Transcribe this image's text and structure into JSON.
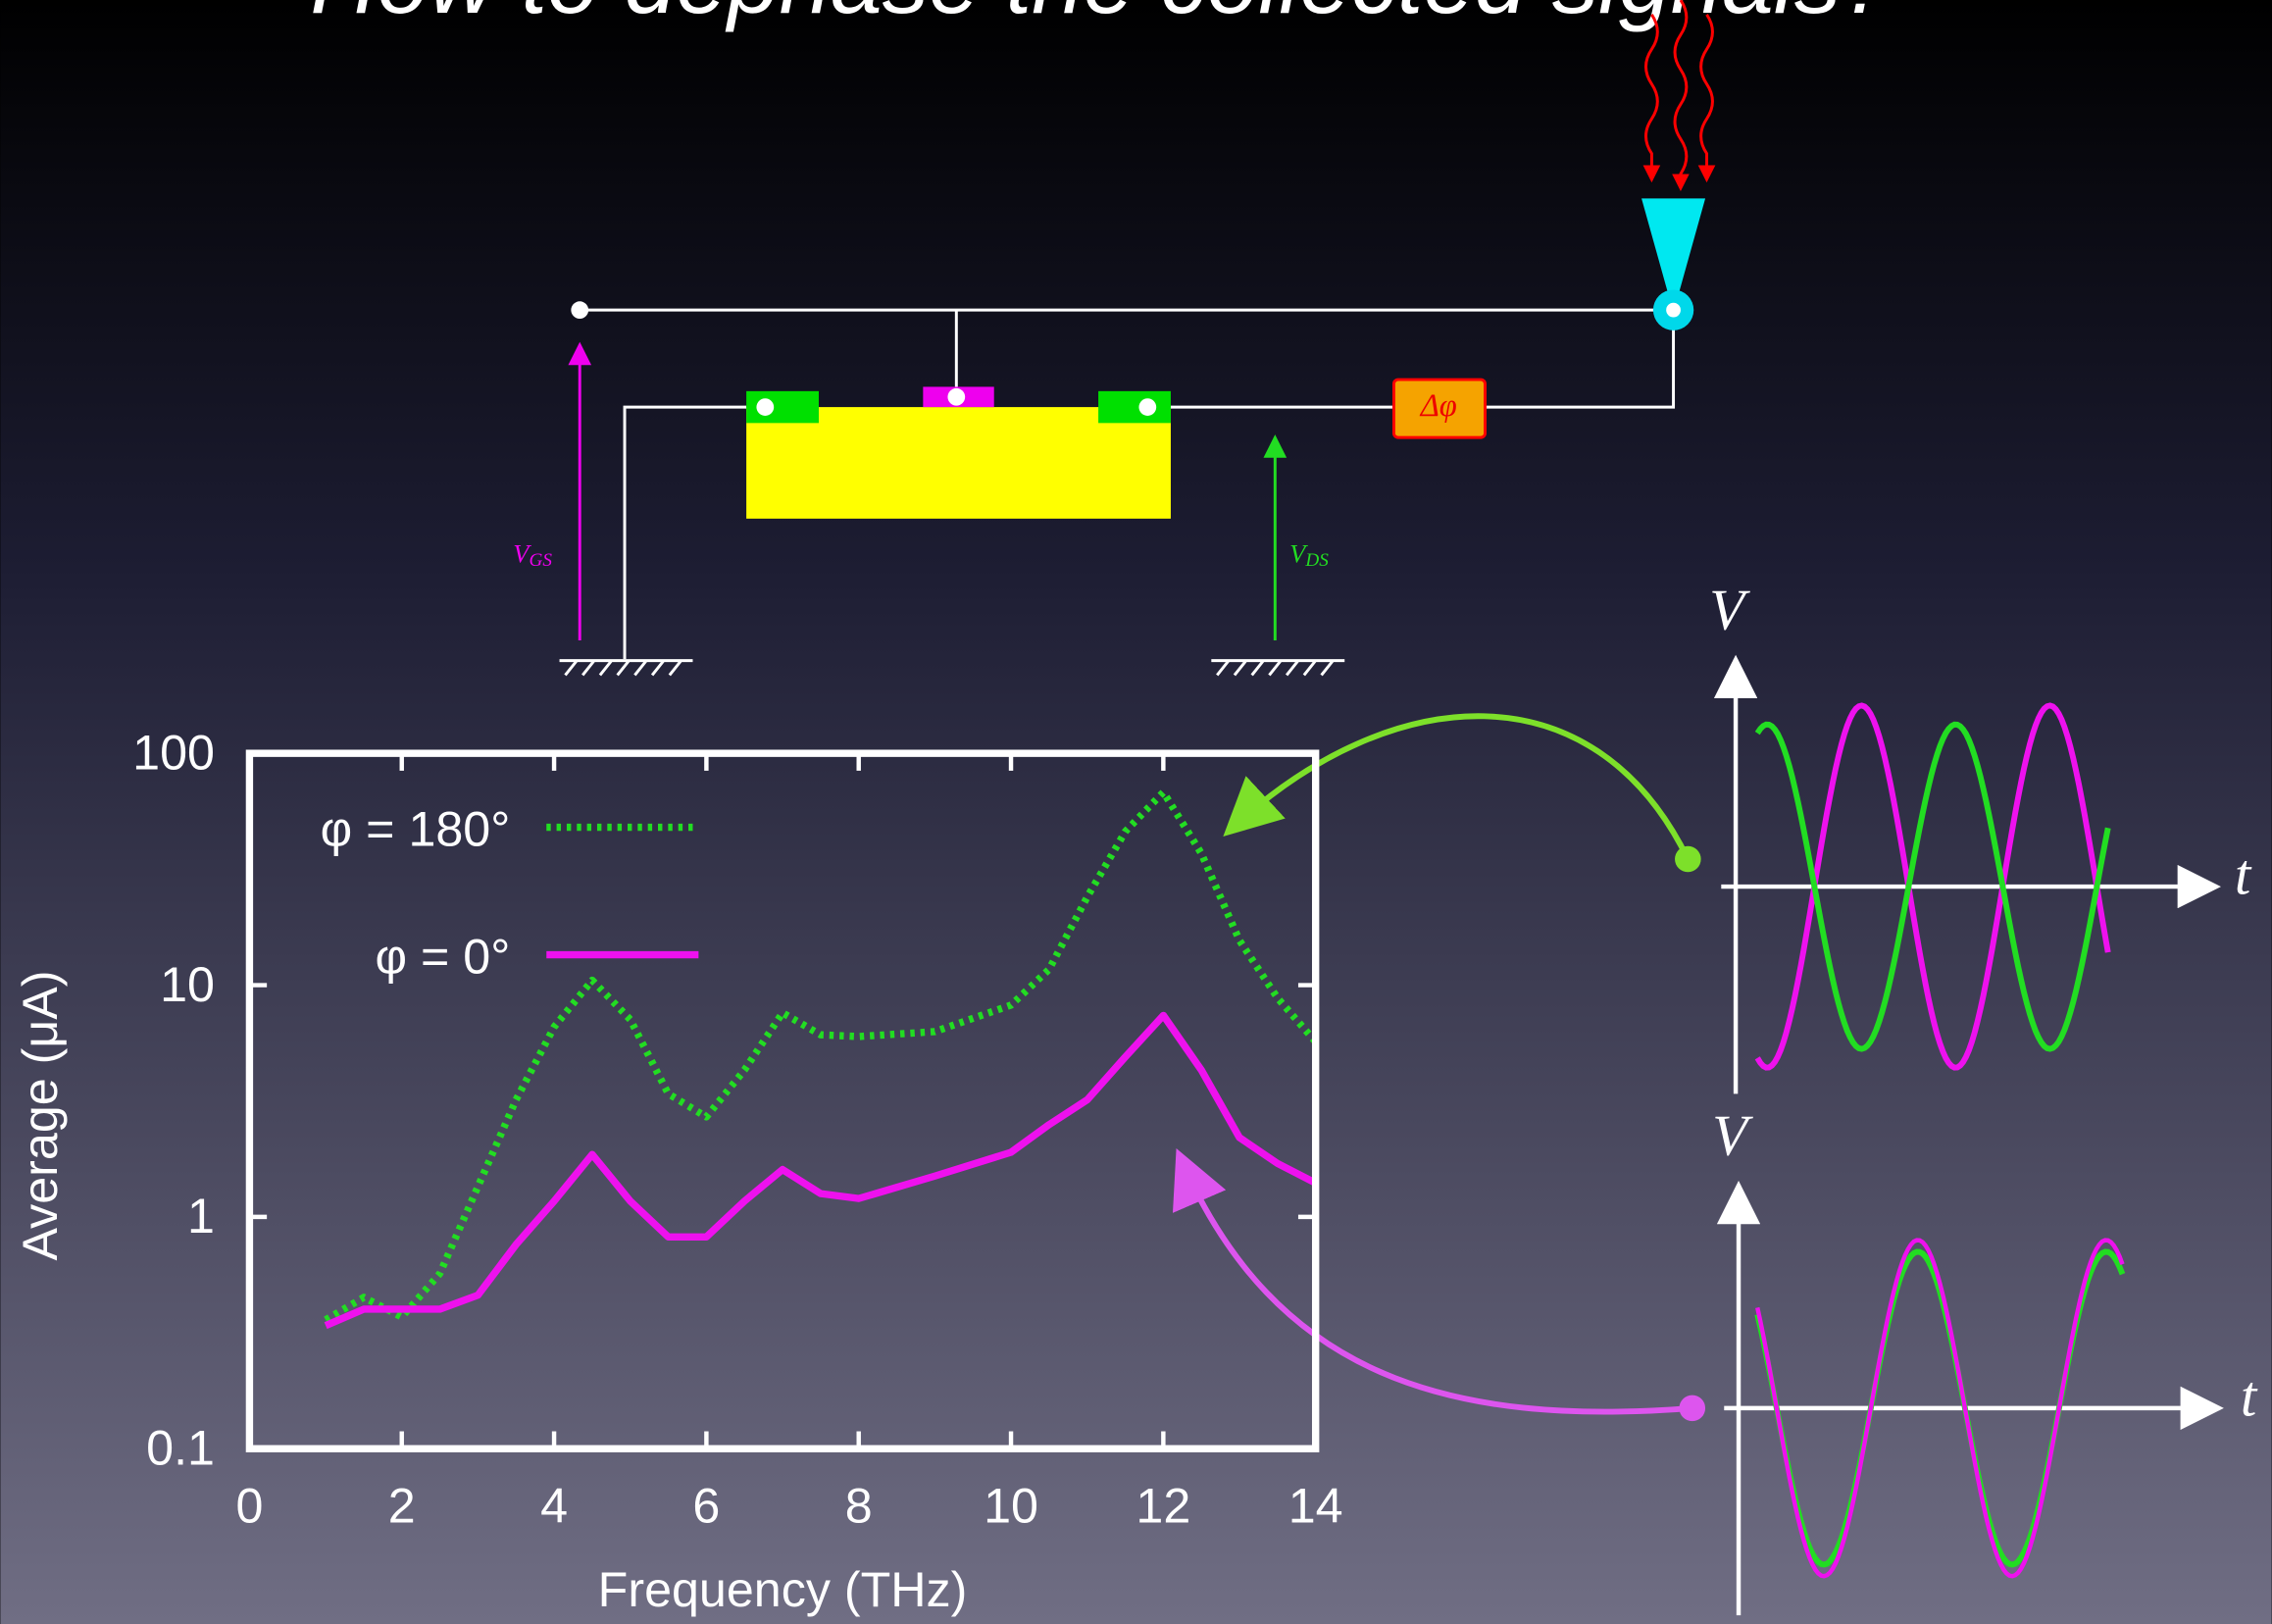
{
  "slide": {
    "title": "How to dephase the collected signals?"
  },
  "diagram": {
    "phase_shifter": "Δφ",
    "gate_voltage": {
      "symbol": "V",
      "subscript": "GS"
    },
    "drain_voltage": {
      "symbol": "V",
      "subscript": "DS"
    },
    "waveform_top": {
      "y_axis": "V",
      "x_axis": "t"
    },
    "waveform_bottom": {
      "y_axis": "V",
      "x_axis": "t"
    }
  },
  "chart_data": {
    "type": "line",
    "xlabel": "Frequency (THz)",
    "ylabel": "Average (μA)",
    "xlim": [
      0,
      14
    ],
    "xticks": [
      0,
      2,
      4,
      6,
      8,
      10,
      12,
      14
    ],
    "ylim": [
      0.1,
      100
    ],
    "yticks": [
      0.1,
      1,
      10,
      100
    ],
    "log_y": true,
    "legend": "upper left",
    "x": [
      1,
      1.5,
      2,
      2.5,
      3,
      3.5,
      4,
      4.5,
      5,
      5.5,
      6,
      6.5,
      7,
      7.5,
      8,
      9,
      10,
      10.5,
      11,
      11.5,
      12,
      12.5,
      13,
      13.5,
      14
    ],
    "series": [
      {
        "name": "φ = 180°",
        "color": "#22dd22",
        "dash": "dotted",
        "values": [
          0.36,
          0.45,
          0.37,
          0.57,
          1.35,
          3.2,
          6.6,
          10.5,
          7.1,
          3.4,
          2.7,
          4.3,
          7.6,
          6.1,
          6.0,
          6.3,
          8.2,
          11.7,
          24,
          46,
          68,
          37,
          15.6,
          8.8,
          5.7
        ]
      },
      {
        "name": "φ = 0°",
        "color": "#ee11ee",
        "dash": "solid",
        "values": [
          0.34,
          0.4,
          0.4,
          0.4,
          0.46,
          0.76,
          1.17,
          1.86,
          1.17,
          0.82,
          0.82,
          1.17,
          1.6,
          1.26,
          1.2,
          1.5,
          1.9,
          2.5,
          3.2,
          4.9,
          7.4,
          4.3,
          2.2,
          1.7,
          1.4
        ]
      }
    ]
  }
}
